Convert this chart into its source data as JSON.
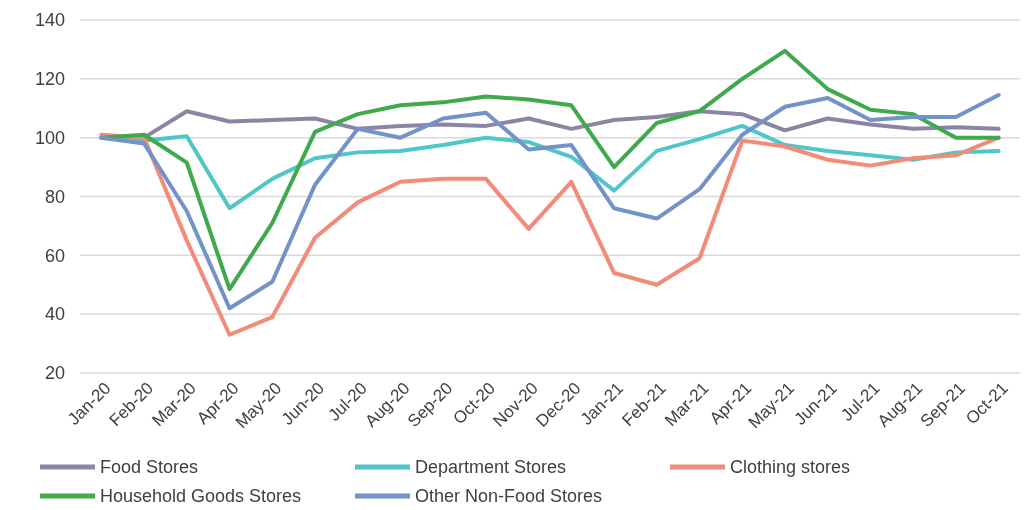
{
  "chart_data": {
    "type": "line",
    "categories": [
      "Jan-20",
      "Feb-20",
      "Mar-20",
      "Apr-20",
      "May-20",
      "Jun-20",
      "Jul-20",
      "Aug-20",
      "Sep-20",
      "Oct-20",
      "Nov-20",
      "Dec-20",
      "Jan-21",
      "Feb-21",
      "Mar-21",
      "Apr-21",
      "May-21",
      "Jun-21",
      "Jul-21",
      "Aug-21",
      "Sep-21",
      "Oct-21"
    ],
    "series": [
      {
        "name": "Food Stores",
        "color": "#8a85a5",
        "values": [
          100,
          100,
          109,
          105.5,
          106,
          106.5,
          103,
          104,
          104.5,
          104,
          106.5,
          103,
          106,
          107,
          109,
          108,
          102.5,
          106.5,
          104.5,
          103,
          103.5,
          103
        ]
      },
      {
        "name": "Department Stores",
        "color": "#4fc6c8",
        "values": [
          100,
          99,
          100.5,
          76,
          86,
          93,
          95,
          95.5,
          97.5,
          100,
          98.5,
          93.5,
          82,
          95.5,
          99.5,
          104,
          97.5,
          95.5,
          94,
          92.5,
          95,
          95.5
        ]
      },
      {
        "name": "Clothing stores",
        "color": "#f28b78",
        "values": [
          101,
          100,
          65,
          33,
          39,
          66,
          78,
          85,
          86,
          86,
          69,
          85,
          54,
          50,
          59,
          99,
          97,
          92.5,
          90.5,
          93,
          94,
          100
        ]
      },
      {
        "name": "Household Goods Stores",
        "color": "#3faa4c",
        "values": [
          100,
          101,
          91.5,
          48.5,
          71,
          102,
          108,
          111,
          112,
          114,
          113,
          111,
          90,
          105,
          109,
          120,
          129.5,
          116.5,
          109.5,
          108,
          100,
          100
        ]
      },
      {
        "name": "Other Non-Food Stores",
        "color": "#7293c9",
        "values": [
          100,
          98,
          75,
          42,
          51,
          84,
          103,
          100,
          106.5,
          108.5,
          96,
          97.5,
          76,
          72.5,
          82.5,
          101,
          110.5,
          113.5,
          106,
          107,
          107,
          114.5
        ]
      }
    ],
    "ylim": [
      20,
      140
    ],
    "yticks": [
      20,
      40,
      60,
      80,
      100,
      120,
      140
    ],
    "grid": "y",
    "legend": "bottom",
    "marker": "none",
    "line_style": "solid"
  }
}
